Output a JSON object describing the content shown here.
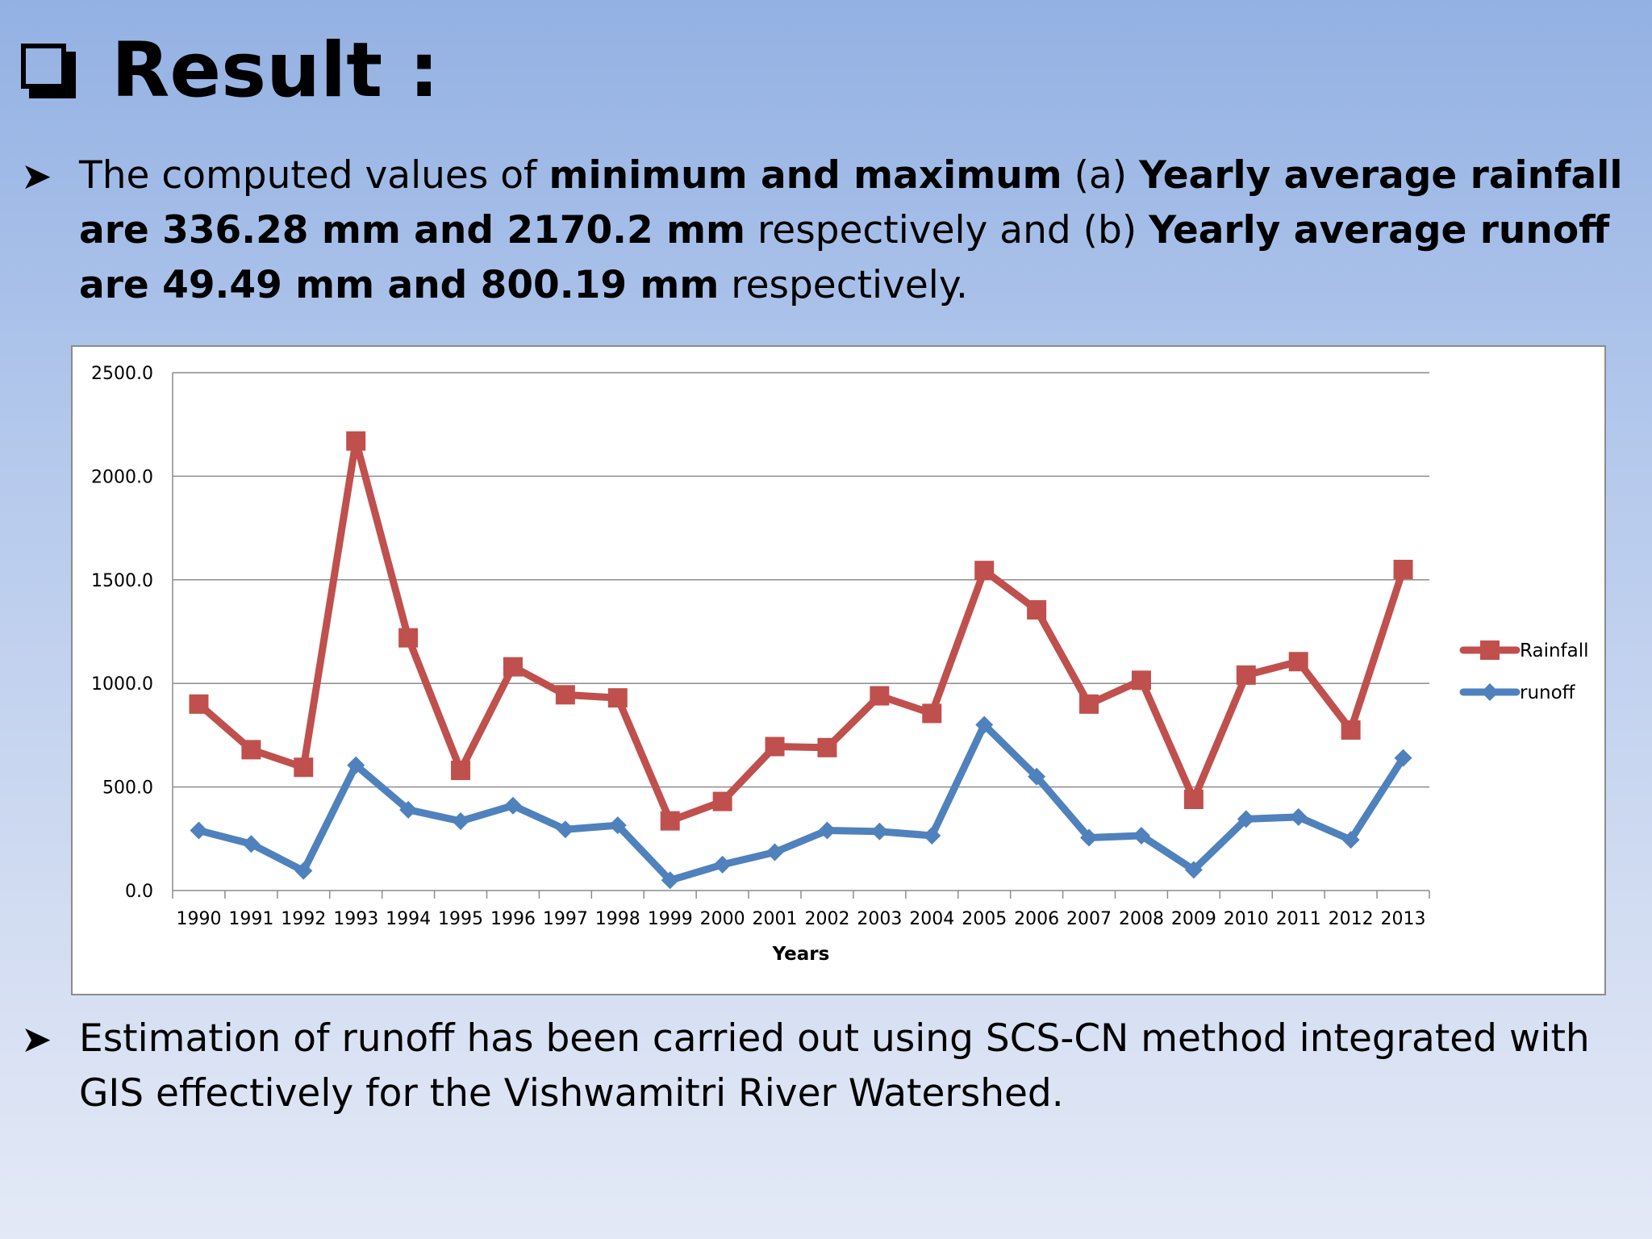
{
  "slide": {
    "title": "Result :",
    "bullet1": {
      "t1": "The computed values of ",
      "b1": "minimum and maximum",
      "t2": " (a) ",
      "b2": "Yearly average rainfall are 336.28 mm and 2170.2 mm",
      "t3": " respectively and (b) ",
      "b3": "Yearly average runoff are 49.49 mm and 800.19 mm",
      "t4": " respectively."
    },
    "bullet2": "Estimation of runoff has been carried out using SCS-CN method integrated with GIS effectively for the Vishwamitri River Watershed."
  },
  "chart_data": {
    "type": "line",
    "xlabel": "Years",
    "ylabel": "",
    "ylim": [
      0,
      2500
    ],
    "yticks": [
      "0.0",
      "500.0",
      "1000.0",
      "1500.0",
      "2000.0",
      "2500.0"
    ],
    "grid": true,
    "legend": "right",
    "categories": [
      "1990",
      "1991",
      "1992",
      "1993",
      "1994",
      "1995",
      "1996",
      "1997",
      "1998",
      "1999",
      "2000",
      "2001",
      "2002",
      "2003",
      "2004",
      "2005",
      "2006",
      "2007",
      "2008",
      "2009",
      "2010",
      "2011",
      "2012",
      "2013"
    ],
    "series": [
      {
        "name": "Rainfall",
        "color": "#c0504d",
        "marker": "square",
        "values": [
          900,
          680,
          595,
          2170.2,
          1220,
          580,
          1080,
          945,
          930,
          336.28,
          430,
          695,
          690,
          940,
          855,
          1545,
          1355,
          900,
          1015,
          440,
          1040,
          1105,
          775,
          1550
        ]
      },
      {
        "name": "runoff",
        "color": "#4f81bd",
        "marker": "diamond",
        "values": [
          290,
          225,
          95,
          605,
          390,
          335,
          410,
          295,
          315,
          49.49,
          125,
          185,
          290,
          285,
          265,
          800.19,
          550,
          255,
          265,
          100,
          345,
          355,
          245,
          640
        ]
      }
    ]
  }
}
